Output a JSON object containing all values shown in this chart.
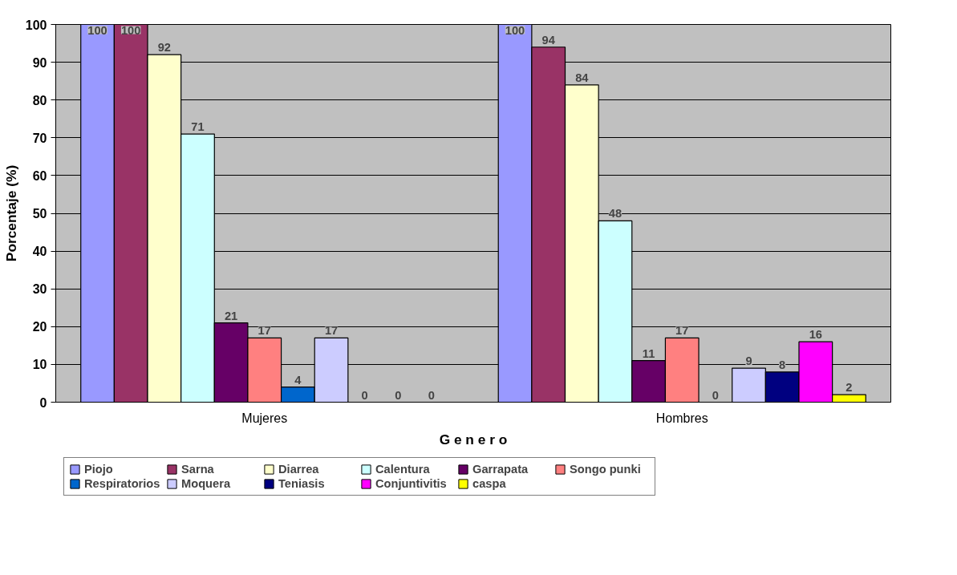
{
  "chart_data": {
    "type": "bar",
    "categories": [
      "Mujeres",
      "Hombres"
    ],
    "xlabel": "G e n e r o",
    "ylabel": "Porcentaje (%)",
    "ylim": [
      0,
      100
    ],
    "yticks": [
      0,
      10,
      20,
      30,
      40,
      50,
      60,
      70,
      80,
      90,
      100
    ],
    "grid": "y",
    "legend": "bottom",
    "data_labels": true,
    "series": [
      {
        "name": "Piojo",
        "color": "#9999ff",
        "values": [
          100,
          100
        ]
      },
      {
        "name": "Sarna",
        "color": "#993366",
        "values": [
          100,
          94
        ]
      },
      {
        "name": "Diarrea",
        "color": "#ffffcc",
        "values": [
          92,
          84
        ]
      },
      {
        "name": "Calentura",
        "color": "#ccffff",
        "values": [
          71,
          48
        ]
      },
      {
        "name": "Garrapata",
        "color": "#660066",
        "values": [
          21,
          11
        ]
      },
      {
        "name": "Songo punki",
        "color": "#ff8080",
        "values": [
          17,
          17
        ]
      },
      {
        "name": "Respiratorios",
        "color": "#0066cc",
        "values": [
          4,
          0
        ]
      },
      {
        "name": "Moquera",
        "color": "#ccccff",
        "values": [
          17,
          9
        ]
      },
      {
        "name": "Teniasis",
        "color": "#000080",
        "values": [
          0,
          8
        ]
      },
      {
        "name": "Conjuntivitis",
        "color": "#ff00ff",
        "values": [
          0,
          16
        ]
      },
      {
        "name": "caspa",
        "color": "#ffff00",
        "values": [
          0,
          2
        ]
      }
    ]
  }
}
